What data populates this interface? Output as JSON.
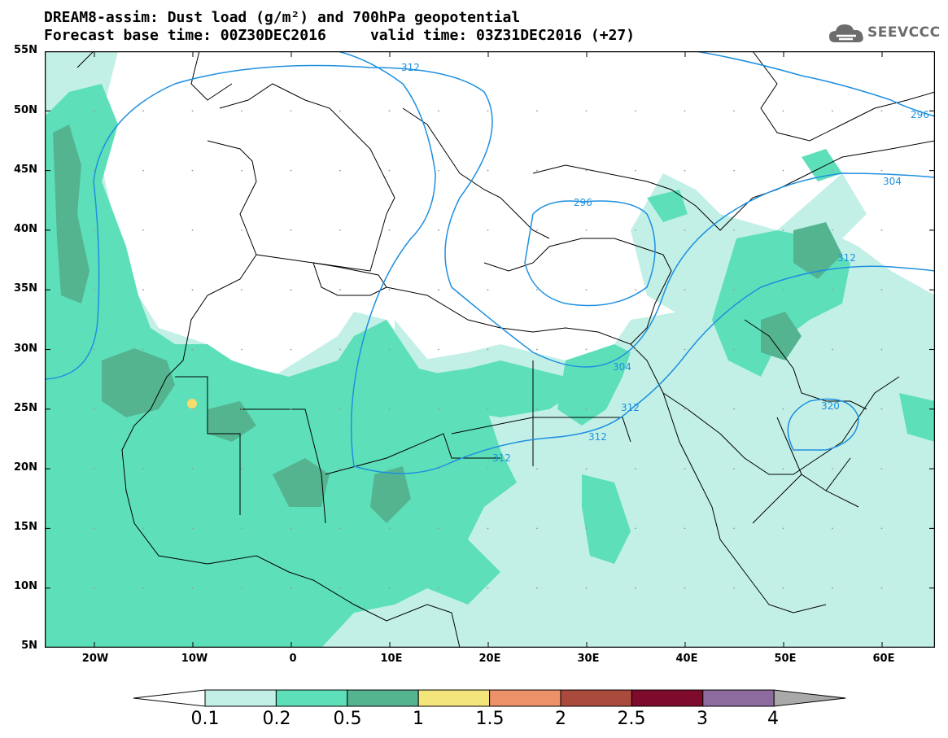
{
  "header": {
    "title_line1": "DREAM8-assim: Dust load (g/m²) and 700hPa geopotential",
    "title_line2": "Forecast base time: 00Z30DEC2016     valid time: 03Z31DEC2016 (+27)"
  },
  "logo": {
    "text": "SEEVCCC",
    "icon": "cloud-icon"
  },
  "map": {
    "lat_labels": [
      "55N",
      "50N",
      "45N",
      "40N",
      "35N",
      "30N",
      "25N",
      "20N",
      "15N",
      "10N",
      "5N"
    ],
    "lon_labels": [
      "20W",
      "10W",
      "0",
      "10E",
      "20E",
      "30E",
      "40E",
      "50E",
      "60E"
    ],
    "contour_labels": [
      "312",
      "296",
      "296",
      "304",
      "312",
      "304",
      "312",
      "312",
      "312",
      "320"
    ],
    "colors": {
      "level1": "#c2f0e7",
      "level2": "#5ddfb9",
      "level3": "#55b490",
      "contour": "#1e90e0",
      "coast": "#000000",
      "source_point": "#f6dc6a"
    }
  },
  "colorbar": {
    "labels": [
      "0.1",
      "0.2",
      "0.5",
      "1",
      "1.5",
      "2",
      "2.5",
      "3",
      "4"
    ],
    "colors": [
      "#ffffff",
      "#c2f0e7",
      "#5ddfb9",
      "#55b490",
      "#f3e57c",
      "#ec9168",
      "#a94a3d",
      "#7e0b2c",
      "#8e6b9e",
      "#a9a9a9"
    ]
  }
}
